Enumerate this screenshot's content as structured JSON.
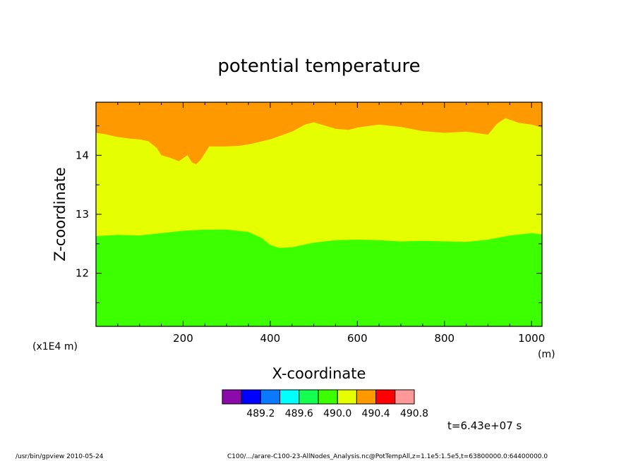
{
  "chart_data": {
    "type": "heatmap",
    "title": "potential temperature",
    "xlabel": "X-coordinate",
    "ylabel": "Z-coordinate",
    "x_units": "(m)",
    "y_scale_label": "(x1E4 m)",
    "xlim": [
      0,
      1024
    ],
    "ylim": [
      11.1,
      14.9
    ],
    "x_ticks": [
      {
        "value": 200,
        "label": "200"
      },
      {
        "value": 400,
        "label": "400"
      },
      {
        "value": 600,
        "label": "600"
      },
      {
        "value": 800,
        "label": "800"
      },
      {
        "value": 1000,
        "label": "1000"
      }
    ],
    "y_ticks": [
      {
        "value": 12,
        "label": "12"
      },
      {
        "value": 13,
        "label": "13"
      },
      {
        "value": 14,
        "label": "14"
      }
    ],
    "levels": [
      {
        "label": "",
        "color": "#8a0aaa"
      },
      {
        "label": "489.2",
        "color": "#0000ff"
      },
      {
        "label": "",
        "color": "#0a78ff"
      },
      {
        "label": "489.6",
        "color": "#00ffff"
      },
      {
        "label": "",
        "color": "#14ff50"
      },
      {
        "label": "490.0",
        "color": "#3cff00"
      },
      {
        "label": "",
        "color": "#e6ff00"
      },
      {
        "label": "490.4",
        "color": "#ff9900"
      },
      {
        "label": "",
        "color": "#ff0000"
      },
      {
        "label": "490.8",
        "color": "#ff9999"
      }
    ],
    "region_colors": {
      "lower": "#3cff00",
      "middle": "#e6ff00",
      "upper": "#ff9900"
    },
    "lower_boundary": [
      [
        0,
        12.63
      ],
      [
        50,
        12.65
      ],
      [
        100,
        12.64
      ],
      [
        150,
        12.68
      ],
      [
        200,
        12.72
      ],
      [
        250,
        12.74
      ],
      [
        300,
        12.74
      ],
      [
        350,
        12.7
      ],
      [
        380,
        12.6
      ],
      [
        400,
        12.48
      ],
      [
        420,
        12.43
      ],
      [
        450,
        12.44
      ],
      [
        500,
        12.52
      ],
      [
        550,
        12.56
      ],
      [
        600,
        12.57
      ],
      [
        650,
        12.56
      ],
      [
        700,
        12.54
      ],
      [
        750,
        12.55
      ],
      [
        800,
        12.54
      ],
      [
        850,
        12.53
      ],
      [
        900,
        12.57
      ],
      [
        950,
        12.64
      ],
      [
        1000,
        12.68
      ],
      [
        1024,
        12.66
      ]
    ],
    "upper_boundary": [
      [
        0,
        14.38
      ],
      [
        20,
        14.36
      ],
      [
        50,
        14.31
      ],
      [
        80,
        14.28
      ],
      [
        100,
        14.27
      ],
      [
        120,
        14.24
      ],
      [
        140,
        14.12
      ],
      [
        150,
        14.0
      ],
      [
        170,
        13.96
      ],
      [
        190,
        13.9
      ],
      [
        210,
        14.0
      ],
      [
        220,
        13.88
      ],
      [
        230,
        13.85
      ],
      [
        240,
        13.92
      ],
      [
        260,
        14.15
      ],
      [
        300,
        14.15
      ],
      [
        330,
        14.16
      ],
      [
        360,
        14.2
      ],
      [
        400,
        14.27
      ],
      [
        450,
        14.4
      ],
      [
        480,
        14.52
      ],
      [
        500,
        14.56
      ],
      [
        550,
        14.45
      ],
      [
        580,
        14.43
      ],
      [
        600,
        14.47
      ],
      [
        650,
        14.52
      ],
      [
        700,
        14.48
      ],
      [
        750,
        14.41
      ],
      [
        800,
        14.38
      ],
      [
        850,
        14.4
      ],
      [
        900,
        14.35
      ],
      [
        920,
        14.53
      ],
      [
        940,
        14.63
      ],
      [
        970,
        14.55
      ],
      [
        1000,
        14.52
      ],
      [
        1024,
        14.47
      ]
    ]
  },
  "annotations": {
    "time": "t=6.43e+07 s",
    "footer_left": "/usr/bin/gpview   2010-05-24",
    "footer_right": "C100/.../arare-C100-23-AllNodes_Analysis.nc@PotTempAll,z=1.1e5:1.5e5,t=63800000.0:64400000.0"
  }
}
